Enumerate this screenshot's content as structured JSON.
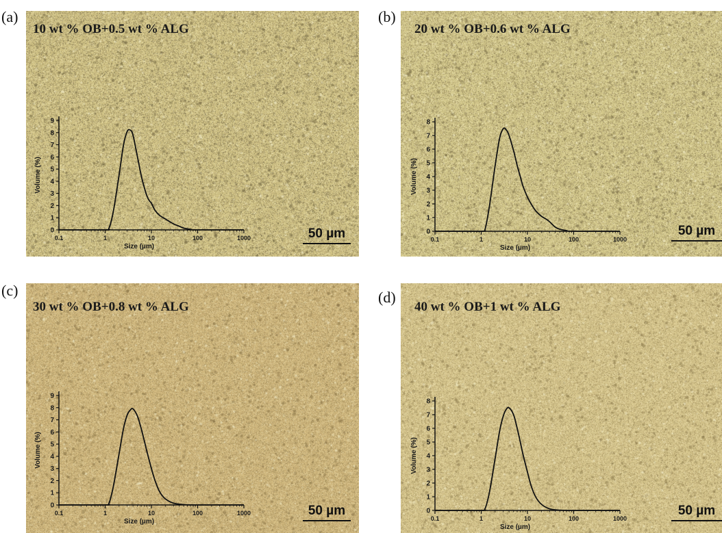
{
  "panels": [
    {
      "letter": "(a)",
      "title": "10 wt % OB+0.5 wt % ALG",
      "scale_label": "50 µm",
      "base_color": "#cdbf83",
      "speck_colors": [
        "#8f845a",
        "#a09364",
        "#e6dca8",
        "#b9a877",
        "#d8cd96"
      ],
      "chart_data": {
        "type": "line",
        "x_scale": "log",
        "xlim": [
          0.1,
          1000
        ],
        "ylim": [
          0,
          9
        ],
        "xticks": [
          "0.1",
          "1",
          "10",
          "100",
          "1000"
        ],
        "yticks": [
          "0",
          "1",
          "2",
          "3",
          "4",
          "5",
          "6",
          "7",
          "8",
          "9"
        ],
        "xlabel": "Size (µm)",
        "ylabel": "Volume (%)",
        "series": [
          {
            "x": [
              0.1,
              1.0,
              1.2,
              1.5,
              2.0,
              2.5,
              3.0,
              3.5,
              4.0,
              5.0,
              6.0,
              7.0,
              8.0,
              9.0,
              10,
              12,
              15,
              20,
              30,
              40,
              50,
              70,
              100,
              1000
            ],
            "y": [
              0,
              0,
              0.1,
              1.5,
              4.5,
              7.0,
              8.1,
              8.2,
              7.8,
              6.0,
              4.5,
              3.5,
              2.8,
              2.4,
              2.2,
              1.6,
              1.2,
              0.9,
              0.5,
              0.3,
              0.15,
              0.05,
              0,
              0
            ]
          }
        ]
      }
    },
    {
      "letter": "(b)",
      "title": "20 wt % OB+0.6 wt % ALG",
      "scale_label": "50 µm",
      "base_color": "#cfc488",
      "speck_colors": [
        "#978b5f",
        "#a99b6a",
        "#e8dfae",
        "#bdae7b",
        "#ddd29c"
      ],
      "chart_data": {
        "type": "line",
        "x_scale": "log",
        "xlim": [
          0.1,
          1000
        ],
        "ylim": [
          0,
          8
        ],
        "xticks": [
          "0.1",
          "1",
          "10",
          "100",
          "1000"
        ],
        "yticks": [
          "0",
          "1",
          "2",
          "3",
          "4",
          "5",
          "6",
          "7",
          "8"
        ],
        "xlabel": "Size (µm)",
        "ylabel": "Volume (%)",
        "series": [
          {
            "x": [
              0.1,
              1.0,
              1.2,
              1.5,
              2.0,
              2.5,
              3.0,
              3.5,
              4.0,
              5.0,
              6.0,
              7.0,
              8.0,
              10,
              12,
              15,
              20,
              25,
              30,
              40,
              50,
              70,
              100,
              1000
            ],
            "y": [
              0,
              0,
              0.1,
              1.8,
              4.8,
              6.8,
              7.5,
              7.4,
              7.0,
              5.9,
              4.8,
              4.0,
              3.3,
              2.5,
              2.0,
              1.5,
              1.1,
              0.9,
              0.7,
              0.3,
              0.15,
              0.05,
              0,
              0
            ]
          }
        ]
      }
    },
    {
      "letter": "(c)",
      "title": "30 wt % OB+0.8 wt % ALG",
      "scale_label": "50 µm",
      "base_color": "#cdb57c",
      "speck_colors": [
        "#a48f5d",
        "#b59f6a",
        "#e0cf9e",
        "#c2a771",
        "#d7c38e"
      ],
      "chart_data": {
        "type": "line",
        "x_scale": "log",
        "xlim": [
          0.1,
          1000
        ],
        "ylim": [
          0,
          9
        ],
        "xticks": [
          "0.1",
          "1",
          "10",
          "100",
          "1000"
        ],
        "yticks": [
          "0",
          "1",
          "2",
          "3",
          "4",
          "5",
          "6",
          "7",
          "8",
          "9"
        ],
        "xlabel": "Size (µm)",
        "ylabel": "Volume (%)",
        "series": [
          {
            "x": [
              0.1,
              1.0,
              1.2,
              1.5,
              2.0,
              2.5,
              3.0,
              3.5,
              4.0,
              5.0,
              6.0,
              7.0,
              8.0,
              10,
              12,
              15,
              20,
              30,
              50,
              100,
              1000
            ],
            "y": [
              0,
              0,
              0.1,
              1.5,
              4.2,
              6.3,
              7.4,
              7.8,
              7.9,
              7.3,
              6.3,
              5.3,
              4.4,
              3.0,
              2.0,
              1.1,
              0.5,
              0.15,
              0.03,
              0,
              0
            ]
          }
        ]
      }
    },
    {
      "letter": "(d)",
      "title": "40 wt % OB+1 wt % ALG",
      "scale_label": "50 µm",
      "base_color": "#d3c38b",
      "speck_colors": [
        "#aa9966",
        "#b9a872",
        "#e7daa9",
        "#c7b37d",
        "#ddcc97"
      ],
      "chart_data": {
        "type": "line",
        "x_scale": "log",
        "xlim": [
          0.1,
          1000
        ],
        "ylim": [
          0,
          8
        ],
        "xticks": [
          "0.1",
          "1",
          "10",
          "100",
          "1000"
        ],
        "yticks": [
          "0",
          "1",
          "2",
          "3",
          "4",
          "5",
          "6",
          "7",
          "8"
        ],
        "xlabel": "Size (µm)",
        "ylabel": "Volume (%)",
        "series": [
          {
            "x": [
              0.1,
              1.0,
              1.2,
              1.5,
              2.0,
              2.5,
              3.0,
              3.5,
              4.0,
              5.0,
              6.0,
              7.0,
              8.0,
              10,
              12,
              15,
              20,
              30,
              50,
              100,
              1000
            ],
            "y": [
              0,
              0,
              0.1,
              1.3,
              3.8,
              5.8,
              6.9,
              7.4,
              7.5,
              7.0,
              6.0,
              5.0,
              4.1,
              2.8,
              1.8,
              1.0,
              0.45,
              0.12,
              0.02,
              0,
              0
            ]
          }
        ]
      }
    }
  ]
}
